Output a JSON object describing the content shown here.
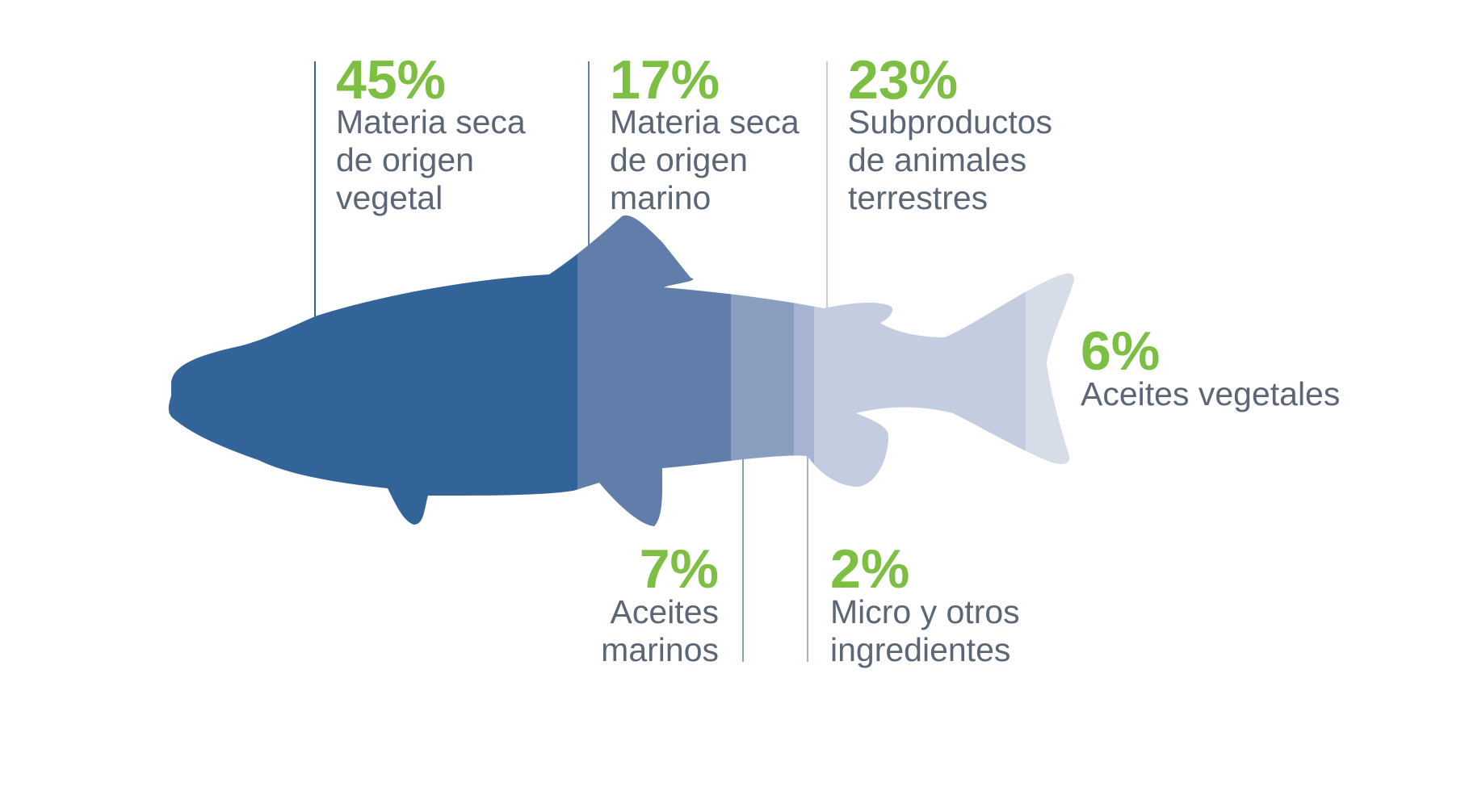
{
  "colors": {
    "accent": "#7cbf42",
    "text": "#5b6676",
    "seg_vegetal_dry": "#336499",
    "seg_marine_dry": "#607ea9",
    "seg_marine_oil": "#8a9fc0",
    "seg_micro": "#a6b4d1",
    "seg_terrestrial": "#c4cce0",
    "seg_vegetal_oil": "#d6dde9"
  },
  "chart_data": {
    "type": "bar",
    "title": "",
    "categories": [
      "Materia seca de origen vegetal",
      "Materia seca de origen marino",
      "Aceites marinos",
      "Micro y otros ingredientes",
      "Subproductos de animales terrestres",
      "Aceites vegetales"
    ],
    "values": [
      45,
      17,
      7,
      2,
      23,
      6
    ],
    "unit": "%",
    "segments": [
      {
        "key": "vegetal_dry",
        "percent_text": "45%",
        "label_lines": [
          "Materia seca",
          "de origen",
          "vegetal"
        ],
        "value": 45,
        "color": "#336499"
      },
      {
        "key": "marine_dry",
        "percent_text": "17%",
        "label_lines": [
          "Materia seca",
          "de origen",
          "marino"
        ],
        "value": 17,
        "color": "#607ea9"
      },
      {
        "key": "marine_oil",
        "percent_text": "7%",
        "label_lines": [
          "Aceites",
          "marinos"
        ],
        "value": 7,
        "color": "#8a9fc0"
      },
      {
        "key": "micro",
        "percent_text": "2%",
        "label_lines": [
          "Micro y otros",
          "ingredientes"
        ],
        "value": 2,
        "color": "#a6b4d1"
      },
      {
        "key": "terrestrial",
        "percent_text": "23%",
        "label_lines": [
          "Subproductos",
          "de animales",
          "terrestres"
        ],
        "value": 23,
        "color": "#c4cce0"
      },
      {
        "key": "vegetal_oil",
        "percent_text": "6%",
        "label_lines": [
          "Aceites vegetales"
        ],
        "value": 6,
        "color": "#d6dde9"
      }
    ]
  }
}
